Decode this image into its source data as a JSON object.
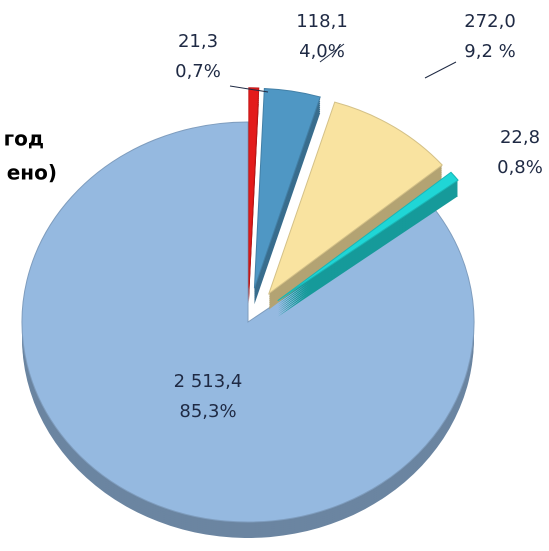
{
  "chart_data": {
    "type": "pie",
    "title_lines": [
      "год",
      "ено)"
    ],
    "categories": [
      null,
      null,
      null,
      null,
      null
    ],
    "values": [
      85.3,
      0.7,
      4.0,
      9.2,
      0.8
    ],
    "value_labels": [
      "85,3%",
      "0,7%",
      "4,0%",
      "9,2 %",
      "0,8%"
    ],
    "amounts": [
      2513.4,
      21.3,
      118.1,
      272.0,
      22.8
    ],
    "amount_labels": [
      "2 513,4",
      "21,3",
      "118,1",
      "272,0",
      "22,8"
    ],
    "colors": [
      "#95b9e0",
      "#e31b1b",
      "#4f97c4",
      "#f9e3a0",
      "#1fd6d6"
    ],
    "start_slice": 1,
    "exploded": [
      1,
      2,
      3,
      4
    ]
  }
}
